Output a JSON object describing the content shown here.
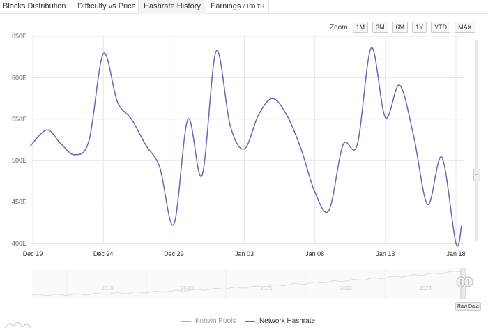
{
  "tabs": [
    {
      "label": "Blocks Distribution"
    },
    {
      "label": "Difficulty vs Price"
    },
    {
      "label": "Hashrate History"
    },
    {
      "label": "Earnings",
      "suffix": "/ 100 TH"
    }
  ],
  "zoom": {
    "label": "Zoom",
    "buttons": [
      "1M",
      "3M",
      "6M",
      "1Y",
      "YTD",
      "MAX"
    ]
  },
  "raw_data_label": "Raw Data",
  "colors": {
    "series": "#6e63b5",
    "inactive": "#b0b0b0",
    "grid": "#e6e6e6"
  },
  "chart_data": {
    "type": "line",
    "ylim": [
      400,
      650
    ],
    "yticks": [
      400,
      450,
      500,
      550,
      600,
      650
    ],
    "ytick_labels": [
      "400E",
      "450E",
      "500E",
      "550E",
      "600E",
      "650E"
    ],
    "x_start": "Dec 19",
    "x_end": "Jan 18",
    "xticks": [
      {
        "x": 0,
        "label": "Dec 19"
      },
      {
        "x": 5,
        "label": "Dec 24"
      },
      {
        "x": 10,
        "label": "Dec 29"
      },
      {
        "x": 15,
        "label": "Jan 03"
      },
      {
        "x": 20,
        "label": "Jan 08"
      },
      {
        "x": 25,
        "label": "Jan 13"
      },
      {
        "x": 30,
        "label": "Jan 18"
      }
    ],
    "x": [
      -0.2,
      1,
      2,
      3,
      4,
      5,
      6,
      7,
      8,
      9,
      10,
      11,
      12,
      13,
      14,
      15,
      16,
      17,
      18,
      19,
      20,
      21,
      22,
      23,
      24,
      25,
      26,
      27,
      28,
      29,
      30,
      30.4
    ],
    "series": [
      {
        "name": "Network Hashrate",
        "values": [
          517,
          537,
          520,
          507,
          525,
          629,
          571,
          550,
          519,
          492,
          423,
          550,
          482,
          632,
          542,
          514,
          555,
          575,
          555,
          515,
          462,
          440,
          519,
          519,
          636,
          552,
          591,
          530,
          447,
          504,
          400,
          422
        ]
      }
    ],
    "legend": [
      {
        "name": "Known Pools",
        "active": false
      },
      {
        "name": "Network Hashrate",
        "active": true
      }
    ],
    "legend_placement": "bottom",
    "navigator": {
      "years": [
        "2019",
        "2020",
        "2021",
        "2022",
        "2023"
      ]
    },
    "grid": true
  }
}
